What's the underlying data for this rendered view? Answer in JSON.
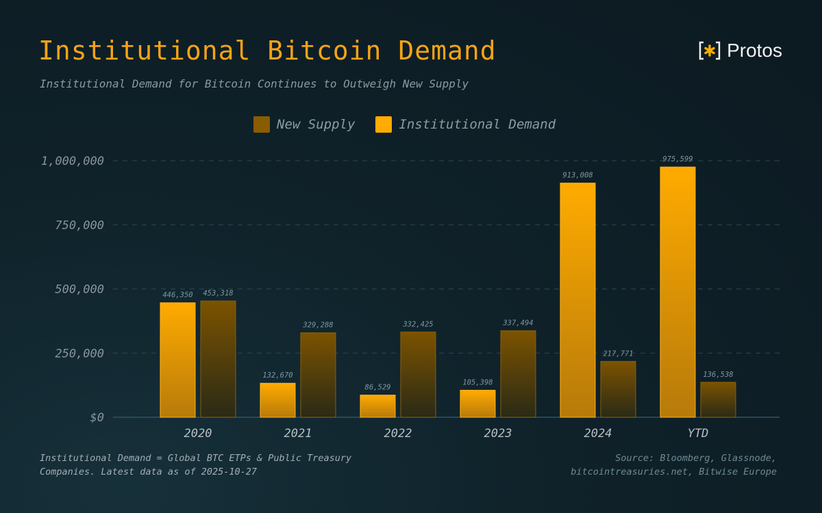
{
  "title": "Institutional Bitcoin Demand",
  "subtitle": "Institutional Demand for Bitcoin Continues to Outweigh New Supply",
  "logo": {
    "icon": "asterisk-bracket-icon",
    "text": "Protos"
  },
  "footer": {
    "note_line1": "Institutional Demand = Global BTC ETPs & Public Treasury",
    "note_line2": "Companies. Latest data as of 2025-10-27",
    "source_line1": "Source: Bloomberg, Glassnode,",
    "source_line2": "bitcointreasuries.net, Bitwise Europe"
  },
  "colors": {
    "demand": "#ffab00",
    "supply": "#7a5200",
    "axis": "#8a959b",
    "value_label": "#7d97a4"
  },
  "chart_data": {
    "type": "bar",
    "categories": [
      "2020",
      "2021",
      "2022",
      "2023",
      "2024",
      "YTD"
    ],
    "series": [
      {
        "name": "Institutional Demand",
        "values": [
          446350,
          132670,
          86529,
          105398,
          913008,
          975599
        ],
        "labels": [
          "446,350",
          "132,670",
          "86,529",
          "105,398",
          "913,008",
          "975,599"
        ]
      },
      {
        "name": "New Supply",
        "values": [
          453318,
          329288,
          332425,
          337494,
          217771,
          136538
        ],
        "labels": [
          "453,318",
          "329,288",
          "332,425",
          "337,494",
          "217,771",
          "136,538"
        ]
      }
    ],
    "legend": [
      "New Supply",
      "Institutional Demand"
    ],
    "legend_position": "top",
    "yticks": [
      0,
      250000,
      500000,
      750000,
      1000000
    ],
    "ytick_labels": [
      "$0",
      "250,000",
      "500,000",
      "750,000",
      "1,000,000"
    ],
    "ylim": [
      0,
      1000000
    ],
    "grid": true,
    "xlabel": "",
    "ylabel": ""
  }
}
